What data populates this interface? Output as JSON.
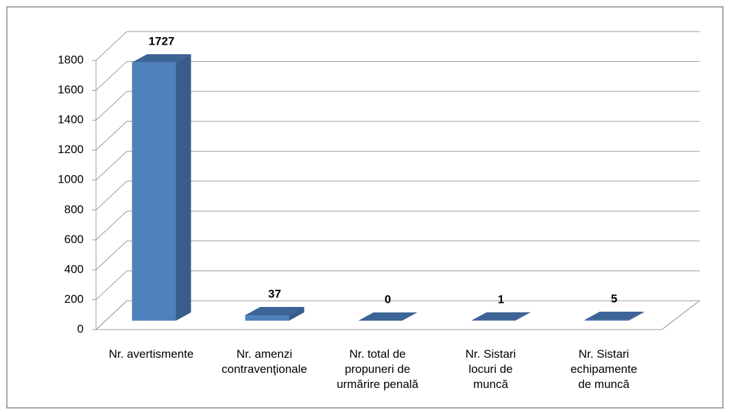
{
  "chart_data": {
    "type": "bar3d",
    "categories": [
      "Nr. avertismente",
      "Nr. amenzi\ncontravenţionale",
      "Nr. total de\npropuneri de\nurmărire penală",
      "Nr. Sistari\nlocuri de\nmuncă",
      "Nr. Sistari\nechipamente\nde muncă"
    ],
    "values": [
      1727,
      37,
      0,
      1,
      5
    ],
    "color": "#4f81bd",
    "ylim": [
      0,
      1800
    ],
    "yticks": [
      0,
      200,
      400,
      600,
      800,
      1000,
      1200,
      1400,
      1600,
      1800
    ],
    "grid": true
  }
}
